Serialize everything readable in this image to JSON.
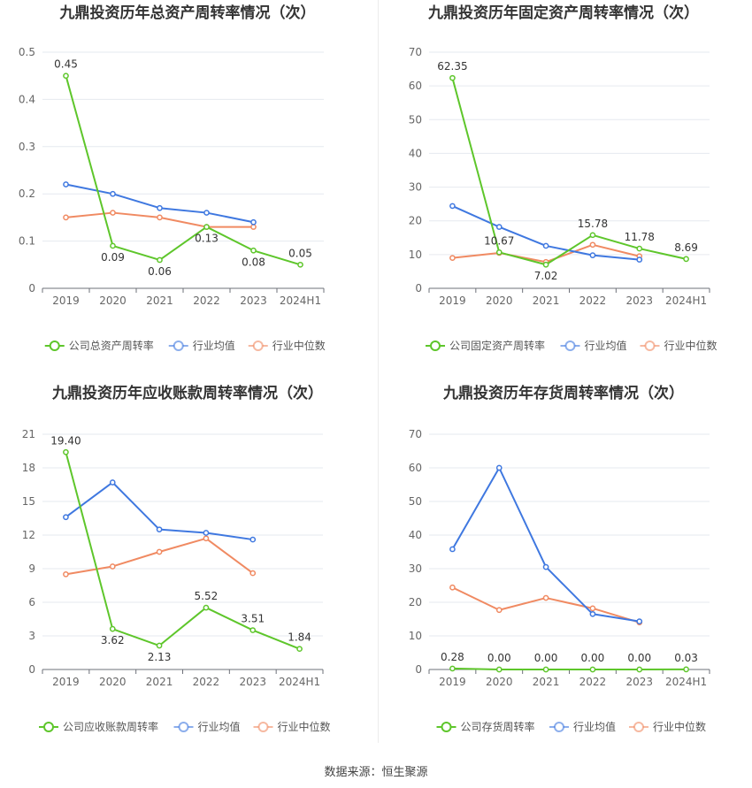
{
  "source": "数据来源：恒生聚源",
  "colors": {
    "company": "#5ec62b",
    "mean": "#3f78e0",
    "median": "#f08a62"
  },
  "chart_data": [
    {
      "type": "line",
      "title": "九鼎投资历年总资产周转率情况（次）",
      "categories": [
        "2019",
        "2020",
        "2021",
        "2022",
        "2023",
        "2024H1"
      ],
      "ylim": [
        0,
        0.5
      ],
      "yticks": [
        0,
        0.1,
        0.2,
        0.3,
        0.4,
        0.5
      ],
      "ytick_labels": [
        "0",
        "0.1",
        "0.2",
        "0.3",
        "0.4",
        "0.5"
      ],
      "series": [
        {
          "name": "公司总资产周转率",
          "values": [
            0.45,
            0.09,
            0.06,
            0.13,
            0.08,
            0.05
          ],
          "labels": [
            "0.45",
            "0.09",
            "0.06",
            "0.13",
            "0.08",
            "0.05"
          ]
        },
        {
          "name": "行业均值",
          "values": [
            0.22,
            0.2,
            0.17,
            0.16,
            0.14,
            null
          ]
        },
        {
          "name": "行业中位数",
          "values": [
            0.15,
            0.16,
            0.15,
            0.13,
            0.13,
            null
          ]
        }
      ],
      "grid": true,
      "legend": "bottom"
    },
    {
      "type": "line",
      "title": "九鼎投资历年固定资产周转率情况（次）",
      "categories": [
        "2019",
        "2020",
        "2021",
        "2022",
        "2023",
        "2024H1"
      ],
      "ylim": [
        0,
        70
      ],
      "yticks": [
        0,
        10,
        20,
        30,
        40,
        50,
        60,
        70
      ],
      "ytick_labels": [
        "0",
        "10",
        "20",
        "30",
        "40",
        "50",
        "60",
        "70"
      ],
      "series": [
        {
          "name": "公司固定资产周转率",
          "values": [
            62.35,
            10.67,
            7.02,
            15.78,
            11.78,
            8.69
          ],
          "labels": [
            "62.35",
            "10.67",
            "7.02",
            "15.78",
            "11.78",
            "8.69"
          ]
        },
        {
          "name": "行业均值",
          "values": [
            24.4,
            18.2,
            12.6,
            9.8,
            8.5,
            null
          ]
        },
        {
          "name": "行业中位数",
          "values": [
            9.0,
            10.5,
            7.8,
            12.9,
            9.5,
            null
          ]
        }
      ],
      "grid": true,
      "legend": "bottom"
    },
    {
      "type": "line",
      "title": "九鼎投资历年应收账款周转率情况（次）",
      "categories": [
        "2019",
        "2020",
        "2021",
        "2022",
        "2023",
        "2024H1"
      ],
      "ylim": [
        0,
        21
      ],
      "yticks": [
        0,
        3,
        6,
        9,
        12,
        15,
        18,
        21
      ],
      "ytick_labels": [
        "0",
        "3",
        "6",
        "9",
        "12",
        "15",
        "18",
        "21"
      ],
      "series": [
        {
          "name": "公司应收账款周转率",
          "values": [
            19.4,
            3.62,
            2.13,
            5.52,
            3.51,
            1.84
          ],
          "labels": [
            "19.40",
            "3.62",
            "2.13",
            "5.52",
            "3.51",
            "1.84"
          ]
        },
        {
          "name": "行业均值",
          "values": [
            13.6,
            16.7,
            12.5,
            12.2,
            11.6,
            null
          ]
        },
        {
          "name": "行业中位数",
          "values": [
            8.5,
            9.2,
            10.5,
            11.7,
            8.6,
            null
          ]
        }
      ],
      "grid": true,
      "legend": "bottom"
    },
    {
      "type": "line",
      "title": "九鼎投资历年存货周转率情况（次）",
      "categories": [
        "2019",
        "2020",
        "2021",
        "2022",
        "2023",
        "2024H1"
      ],
      "ylim": [
        0,
        70
      ],
      "yticks": [
        0,
        10,
        20,
        30,
        40,
        50,
        60,
        70
      ],
      "ytick_labels": [
        "0",
        "10",
        "20",
        "30",
        "40",
        "50",
        "60",
        "70"
      ],
      "series": [
        {
          "name": "公司存货周转率",
          "values": [
            0.28,
            0.0,
            0.0,
            0.0,
            0.0,
            0.03
          ],
          "labels": [
            "0.28",
            "0.00",
            "0.00",
            "0.00",
            "0.00",
            "0.03"
          ]
        },
        {
          "name": "行业均值",
          "values": [
            35.8,
            60.0,
            30.5,
            16.5,
            14.3,
            null
          ]
        },
        {
          "name": "行业中位数",
          "values": [
            24.4,
            17.7,
            21.3,
            18.2,
            14.0,
            null
          ]
        }
      ],
      "grid": true,
      "legend": "bottom"
    }
  ]
}
